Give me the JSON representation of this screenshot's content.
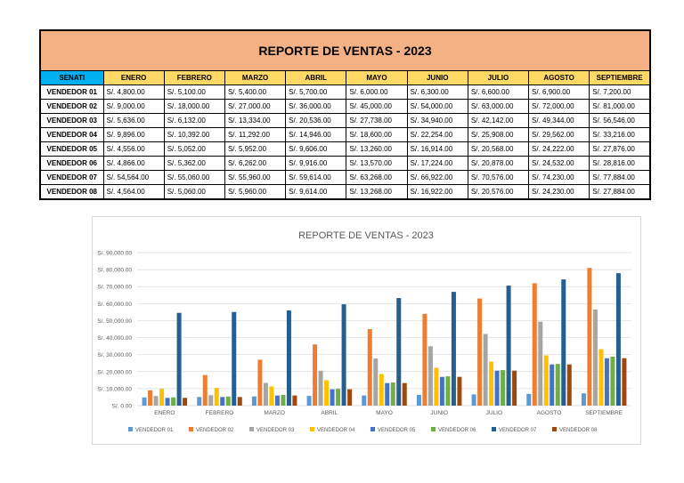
{
  "table": {
    "title": "REPORTE DE VENTAS - 2023",
    "corner": "SENATI",
    "months": [
      "ENERO",
      "FEBRERO",
      "MARZO",
      "ABRIL",
      "MAYO",
      "JUNIO",
      "JULIO",
      "AGOSTO",
      "SEPTIEMBRE"
    ],
    "rows": [
      {
        "name": "VENDEDOR 01",
        "cells": [
          "S/. 4,800.00",
          "S/. 5,100.00",
          "S/. 5,400.00",
          "S/. 5,700.00",
          "S/. 6,000.00",
          "S/. 6,300.00",
          "S/. 6,600.00",
          "S/. 6,900.00",
          "S/. 7,200.00"
        ]
      },
      {
        "name": "VENDEDOR 02",
        "cells": [
          "S/. 9,000.00",
          "S/. 18,000.00",
          "S/. 27,000.00",
          "S/. 36,000.00",
          "S/. 45,000.00",
          "S/. 54,000.00",
          "S/. 63,000.00",
          "S/. 72,000.00",
          "S/. 81,000.00"
        ]
      },
      {
        "name": "VENDEDOR 03",
        "cells": [
          "S/. 5,636.00",
          "S/. 6,132.00",
          "S/. 13,334.00",
          "S/. 20,536.00",
          "S/. 27,738.00",
          "S/. 34,940.00",
          "S/. 42,142.00",
          "S/. 49,344.00",
          "S/. 56,546.00"
        ]
      },
      {
        "name": "VENDEDOR 04",
        "cells": [
          "S/. 9,896.00",
          "S/. 10,392.00",
          "S/. 11,292.00",
          "S/. 14,946.00",
          "S/. 18,600.00",
          "S/. 22,254.00",
          "S/. 25,908.00",
          "S/. 29,562.00",
          "S/. 33,216.00"
        ]
      },
      {
        "name": "VENDEDOR 05",
        "cells": [
          "S/. 4,556.00",
          "S/. 5,052.00",
          "S/. 5,952.00",
          "S/. 9,606.00",
          "S/. 13,260.00",
          "S/. 16,914.00",
          "S/. 20,568.00",
          "S/. 24,222.00",
          "S/. 27,876.00"
        ]
      },
      {
        "name": "VENDEDOR 06",
        "cells": [
          "S/. 4,866.00",
          "S/. 5,362.00",
          "S/. 6,262.00",
          "S/. 9,916.00",
          "S/. 13,570.00",
          "S/. 17,224.00",
          "S/. 20,878.00",
          "S/. 24,532.00",
          "S/. 28,816.00"
        ]
      },
      {
        "name": "VENDEDOR 07",
        "cells": [
          "S/. 54,564.00",
          "S/. 55,060.00",
          "S/. 55,960.00",
          "S/. 59,614.00",
          "S/. 63,268.00",
          "S/. 66,922.00",
          "S/. 70,576.00",
          "S/. 74,230.00",
          "S/. 77,884.00"
        ]
      },
      {
        "name": "VENDEDOR 08",
        "cells": [
          "S/. 4,564.00",
          "S/. 5,060.00",
          "S/. 5,960.00",
          "S/. 9,614.00",
          "S/. 13,268.00",
          "S/. 16,922.00",
          "S/. 20,576.00",
          "S/. 24,230.00",
          "S/. 27,884.00"
        ]
      }
    ]
  },
  "chart_data": {
    "type": "bar",
    "title": "REPORTE DE VENTAS - 2023",
    "categories": [
      "ENERO",
      "FEBRERO",
      "MARZO",
      "ABRIL",
      "MAYO",
      "JUNIO",
      "JULIO",
      "AGOSTO",
      "SEPTIEMBRE"
    ],
    "ylim": [
      0,
      90000
    ],
    "yticks": [
      "S/. 0.00",
      "S/. 10,000.00",
      "S/. 20,000.00",
      "S/. 30,000.00",
      "S/. 40,000.00",
      "S/. 50,000.00",
      "S/. 60,000.00",
      "S/. 70,000.00",
      "S/. 80,000.00",
      "S/. 90,000.00"
    ],
    "grid": true,
    "legend": "bottom",
    "series": [
      {
        "name": "VENDEDOR 01",
        "color": "#5B9BD5",
        "values": [
          4800,
          5100,
          5400,
          5700,
          6000,
          6300,
          6600,
          6900,
          7200
        ]
      },
      {
        "name": "VENDEDOR 02",
        "color": "#ED7D31",
        "values": [
          9000,
          18000,
          27000,
          36000,
          45000,
          54000,
          63000,
          72000,
          81000
        ]
      },
      {
        "name": "VENDEDOR 03",
        "color": "#A5A5A5",
        "values": [
          5636,
          6132,
          13334,
          20536,
          27738,
          34940,
          42142,
          49344,
          56546
        ]
      },
      {
        "name": "VENDEDOR 04",
        "color": "#FFC000",
        "values": [
          9896,
          10392,
          11292,
          14946,
          18600,
          22254,
          25908,
          29562,
          33216
        ]
      },
      {
        "name": "VENDEDOR 05",
        "color": "#4472C4",
        "values": [
          4556,
          5052,
          5952,
          9606,
          13260,
          16914,
          20568,
          24222,
          27876
        ]
      },
      {
        "name": "VENDEDOR 06",
        "color": "#70AD47",
        "values": [
          4866,
          5362,
          6262,
          9916,
          13570,
          17224,
          20878,
          24532,
          28816
        ]
      },
      {
        "name": "VENDEDOR 07",
        "color": "#255E91",
        "values": [
          54564,
          55060,
          55960,
          59614,
          63268,
          66922,
          70576,
          74230,
          77884
        ]
      },
      {
        "name": "VENDEDOR 08",
        "color": "#9E480E",
        "values": [
          4564,
          5060,
          5960,
          9614,
          13268,
          16922,
          20576,
          24230,
          27884
        ]
      }
    ]
  }
}
